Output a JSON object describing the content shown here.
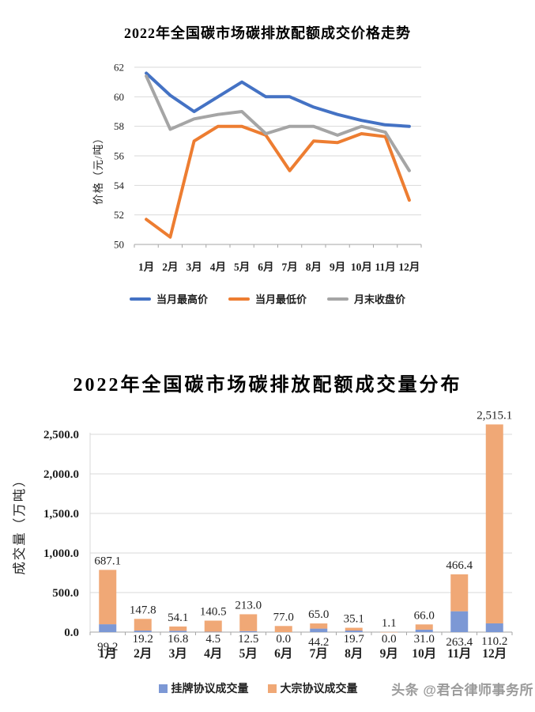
{
  "watermark": "头条 @君合律师事务所",
  "colors": {
    "grid": "#D9D9D9",
    "axis": "#A6A6A6",
    "line_blue": "#4472C4",
    "line_orange": "#ED7D31",
    "line_gray": "#A5A5A5",
    "bar_blue": "#7C98D5",
    "bar_orange": "#F0A876",
    "watermark_gray": "#9B9B9B"
  },
  "chart_data": [
    {
      "type": "line",
      "title": "2022年全国碳市场碳排放配额成交价格走势",
      "xlabel": "",
      "ylabel": "价格（元/吨）",
      "categories": [
        "1月",
        "2月",
        "3月",
        "4月",
        "5月",
        "6月",
        "7月",
        "8月",
        "9月",
        "10月",
        "11月",
        "12月"
      ],
      "ylim": [
        50,
        62
      ],
      "ytick_step": 2,
      "ytick_labels": [
        "50",
        "52",
        "54",
        "56",
        "58",
        "60",
        "62"
      ],
      "grid": true,
      "legend_position": "bottom",
      "series": [
        {
          "name": "当月最高价",
          "color": "#4472C4",
          "values": [
            61.6,
            60.1,
            59.0,
            60.0,
            61.0,
            60.0,
            60.0,
            59.3,
            58.8,
            58.4,
            58.1,
            58.0
          ]
        },
        {
          "name": "当月最低价",
          "color": "#ED7D31",
          "values": [
            51.7,
            50.5,
            57.0,
            58.0,
            58.0,
            57.4,
            55.0,
            57.0,
            56.9,
            57.5,
            57.3,
            53.0
          ]
        },
        {
          "name": "月末收盘价",
          "color": "#A5A5A5",
          "values": [
            61.4,
            57.8,
            58.5,
            58.8,
            59.0,
            57.5,
            58.0,
            58.0,
            57.4,
            58.0,
            57.6,
            55.0
          ]
        }
      ]
    },
    {
      "type": "bar",
      "stacked": true,
      "title": "2022年全国碳市场碳排放配额成交量分布",
      "xlabel": "",
      "ylabel": "成交量（万吨）",
      "categories": [
        "1月",
        "2月",
        "3月",
        "4月",
        "5月",
        "6月",
        "7月",
        "8月",
        "9月",
        "10月",
        "11月",
        "12月"
      ],
      "ylim": [
        0,
        2500
      ],
      "ytick_step": 500,
      "ytick_labels": [
        "0.0",
        "500.0",
        "1,000.0",
        "1,500.0",
        "2,000.0",
        "2,500.0"
      ],
      "grid": true,
      "legend_position": "bottom",
      "series": [
        {
          "name": "挂牌协议成交量",
          "color": "#7C98D5",
          "values": [
            99.2,
            19.2,
            16.8,
            4.5,
            12.5,
            0.0,
            44.2,
            19.7,
            0.0,
            31.0,
            263.4,
            110.2
          ],
          "labels": [
            "99.2",
            "19.2",
            "16.8",
            "4.5",
            "12.5",
            "0.0",
            "44.2",
            "19.7",
            "0.0",
            "31.0",
            "263.4",
            "110.2"
          ],
          "label_position": "below-axis"
        },
        {
          "name": "大宗协议成交量",
          "color": "#F0A876",
          "values": [
            687.1,
            147.8,
            54.1,
            140.5,
            213.0,
            77.0,
            65.0,
            35.1,
            1.1,
            66.0,
            466.4,
            2515.1
          ],
          "labels": [
            "687.1",
            "147.8",
            "54.1",
            "140.5",
            "213.0",
            "77.0",
            "65.0",
            "35.1",
            "1.1",
            "66.0",
            "466.4",
            "2,515.1"
          ],
          "label_position": "above-bar"
        }
      ]
    }
  ]
}
